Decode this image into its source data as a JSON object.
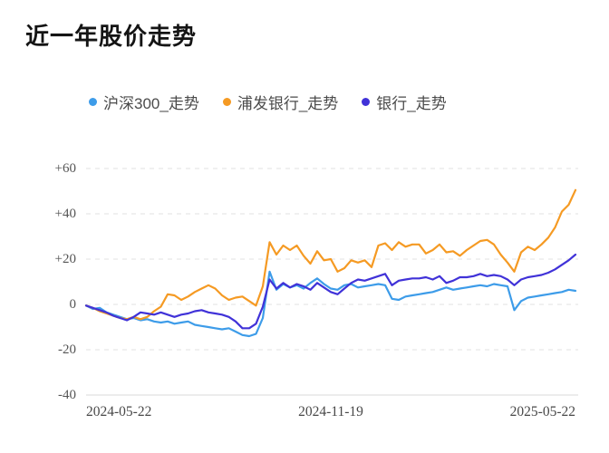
{
  "page": {
    "title": "近一年股价走势"
  },
  "legend": {
    "items": [
      {
        "label": "沪深300_走势",
        "color": "#3d9ce9"
      },
      {
        "label": "浦发银行_走势",
        "color": "#f59a23"
      },
      {
        "label": "银行_走势",
        "color": "#4032d8"
      }
    ]
  },
  "chart_data": {
    "type": "line",
    "title": "近一年股价走势",
    "xlabel": "",
    "ylabel": "",
    "x_ticks": [
      "2024-05-22",
      "2024-11-19",
      "2025-05-22"
    ],
    "y_ticks": [
      "+60",
      "+40",
      "+20",
      "0",
      "-20",
      "-40"
    ],
    "ylim": [
      -40,
      60
    ],
    "grid": "horizontal-dashed",
    "legend_position": "top",
    "series": [
      {
        "name": "沪深300_走势",
        "color": "#3d9ce9",
        "values": [
          -0.5,
          -2,
          -1.5,
          -3.5,
          -4.5,
          -5.5,
          -6.5,
          -6,
          -7,
          -6.5,
          -7.5,
          -8,
          -7.5,
          -8.5,
          -8,
          -7.5,
          -9,
          -9.5,
          -10,
          -10.5,
          -11,
          -10.5,
          -12,
          -13.5,
          -14,
          -13,
          -6,
          14.5,
          6.5,
          9,
          7.5,
          8.5,
          7,
          9.5,
          11.5,
          9,
          7,
          6.5,
          8.5,
          9,
          7.5,
          8,
          8.5,
          9,
          8.5,
          2.5,
          2,
          3.5,
          4,
          4.5,
          5,
          5.5,
          6.5,
          7.5,
          6.5,
          7,
          7.5,
          8,
          8.5,
          8,
          9,
          8.5,
          8,
          -2.5,
          1.5,
          3,
          3.5,
          4,
          4.5,
          5,
          5.5,
          6.5,
          6
        ]
      },
      {
        "name": "浦发银行_走势",
        "color": "#f59a23",
        "values": [
          -0.5,
          -1.5,
          -3,
          -4,
          -5,
          -6,
          -6.5,
          -5.5,
          -6.5,
          -5.5,
          -3,
          -1,
          4.5,
          4,
          2,
          3.5,
          5.5,
          7,
          8.5,
          7,
          4,
          2,
          3,
          3.5,
          1.5,
          -0.5,
          8,
          27.5,
          22,
          26,
          24,
          26,
          21.5,
          18,
          23.5,
          19.5,
          20,
          14.5,
          16,
          19.5,
          18.5,
          19.5,
          16.5,
          26,
          27,
          24,
          27.5,
          25.5,
          26.5,
          26.5,
          22.5,
          24,
          26.5,
          23,
          23.5,
          21.5,
          24,
          26,
          28,
          28.5,
          26.5,
          22,
          18.5,
          14.5,
          23,
          25.5,
          24,
          26.5,
          29.5,
          34,
          41,
          44,
          50.5
        ]
      },
      {
        "name": "银行_走势",
        "color": "#4032d8",
        "values": [
          -0.5,
          -1.5,
          -2.5,
          -3.5,
          -5,
          -6,
          -7,
          -5.5,
          -3.5,
          -4,
          -4.5,
          -3.5,
          -4.5,
          -5.5,
          -4.5,
          -4,
          -3,
          -2.5,
          -3.5,
          -4,
          -4.5,
          -5.5,
          -7.5,
          -10.5,
          -10.5,
          -8.5,
          -1,
          11,
          7,
          9.5,
          7.5,
          9,
          8,
          6.5,
          9.5,
          7.5,
          5.5,
          4.5,
          7,
          9.5,
          11,
          10.5,
          11.5,
          12.5,
          13.5,
          8.5,
          10.5,
          11,
          11.5,
          11.5,
          12,
          11,
          12.5,
          9.5,
          10.5,
          12,
          12,
          12.5,
          13.5,
          12.5,
          13,
          12.5,
          11,
          8.5,
          11,
          12,
          12.5,
          13,
          14,
          15.5,
          17.5,
          19.5,
          22
        ]
      }
    ]
  }
}
